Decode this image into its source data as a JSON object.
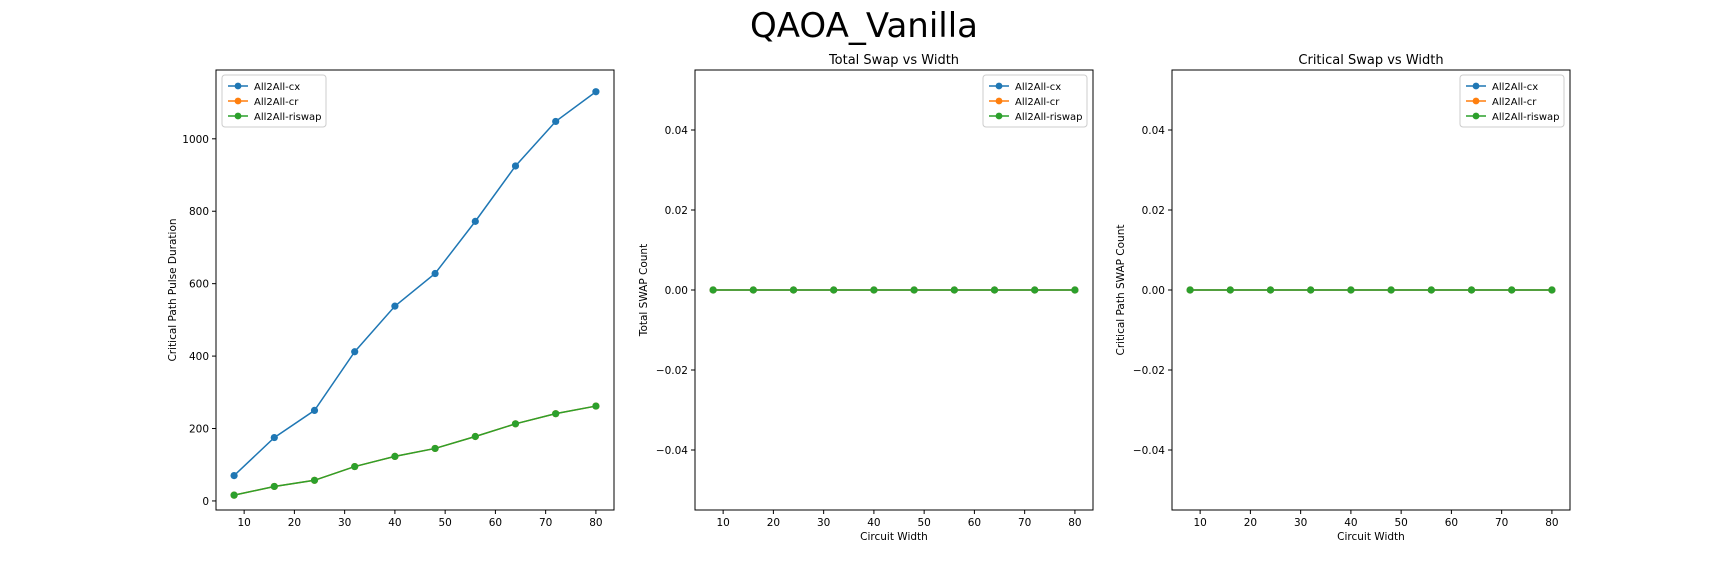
{
  "figure": {
    "title": "QAOA_Vanilla"
  },
  "series_colors": {
    "All2All-cx": "#1f77b4",
    "All2All-cr": "#ff7f0e",
    "All2All-riswap": "#2ca02c"
  },
  "chart_data": [
    {
      "type": "line",
      "title": "",
      "xlabel": "",
      "ylabel": "Critical Path Pulse Duration",
      "xlim": [
        4.4,
        83.6
      ],
      "ylim": [
        -25,
        1190
      ],
      "xticks": [
        10,
        20,
        30,
        40,
        50,
        60,
        70,
        80
      ],
      "xtick_labels": [
        "10",
        "20",
        "30",
        "40",
        "50",
        "60",
        "70",
        "80"
      ],
      "yticks": [
        0,
        200,
        400,
        600,
        800,
        1000
      ],
      "ytick_labels": [
        "0",
        "200",
        "400",
        "600",
        "800",
        "1000"
      ],
      "legend": "upper-left",
      "grid": false,
      "x": [
        8,
        16,
        24,
        32,
        40,
        48,
        56,
        64,
        72,
        80
      ],
      "series": [
        {
          "name": "All2All-cx",
          "values": [
            70,
            175,
            250,
            412,
            538,
            628,
            772,
            925,
            1048,
            1130
          ]
        },
        {
          "name": "All2All-cr",
          "values": [
            16,
            40,
            57,
            95,
            123,
            145,
            178,
            213,
            241,
            262
          ]
        },
        {
          "name": "All2All-riswap",
          "values": [
            16,
            40,
            57,
            95,
            123,
            145,
            178,
            213,
            241,
            262
          ]
        }
      ]
    },
    {
      "type": "line",
      "title": "Total Swap vs Width",
      "xlabel": "Circuit Width",
      "ylabel": "Total SWAP Count",
      "xlim": [
        4.4,
        83.6
      ],
      "ylim": [
        -0.055,
        0.055
      ],
      "xticks": [
        10,
        20,
        30,
        40,
        50,
        60,
        70,
        80
      ],
      "xtick_labels": [
        "10",
        "20",
        "30",
        "40",
        "50",
        "60",
        "70",
        "80"
      ],
      "yticks": [
        -0.04,
        -0.02,
        0.0,
        0.02,
        0.04
      ],
      "ytick_labels": [
        "−0.04",
        "−0.02",
        "0.00",
        "0.02",
        "0.04"
      ],
      "legend": "upper-right",
      "grid": false,
      "x": [
        8,
        16,
        24,
        32,
        40,
        48,
        56,
        64,
        72,
        80
      ],
      "series": [
        {
          "name": "All2All-cx",
          "values": [
            0,
            0,
            0,
            0,
            0,
            0,
            0,
            0,
            0,
            0
          ]
        },
        {
          "name": "All2All-cr",
          "values": [
            0,
            0,
            0,
            0,
            0,
            0,
            0,
            0,
            0,
            0
          ]
        },
        {
          "name": "All2All-riswap",
          "values": [
            0,
            0,
            0,
            0,
            0,
            0,
            0,
            0,
            0,
            0
          ]
        }
      ]
    },
    {
      "type": "line",
      "title": "Critical Swap vs Width",
      "xlabel": "Circuit Width",
      "ylabel": "Critical Path SWAP Count",
      "xlim": [
        4.4,
        83.6
      ],
      "ylim": [
        -0.055,
        0.055
      ],
      "xticks": [
        10,
        20,
        30,
        40,
        50,
        60,
        70,
        80
      ],
      "xtick_labels": [
        "10",
        "20",
        "30",
        "40",
        "50",
        "60",
        "70",
        "80"
      ],
      "yticks": [
        -0.04,
        -0.02,
        0.0,
        0.02,
        0.04
      ],
      "ytick_labels": [
        "−0.04",
        "−0.02",
        "0.00",
        "0.02",
        "0.04"
      ],
      "legend": "upper-right",
      "grid": false,
      "x": [
        8,
        16,
        24,
        32,
        40,
        48,
        56,
        64,
        72,
        80
      ],
      "series": [
        {
          "name": "All2All-cx",
          "values": [
            0,
            0,
            0,
            0,
            0,
            0,
            0,
            0,
            0,
            0
          ]
        },
        {
          "name": "All2All-cr",
          "values": [
            0,
            0,
            0,
            0,
            0,
            0,
            0,
            0,
            0,
            0
          ]
        },
        {
          "name": "All2All-riswap",
          "values": [
            0,
            0,
            0,
            0,
            0,
            0,
            0,
            0,
            0,
            0
          ]
        }
      ]
    }
  ]
}
